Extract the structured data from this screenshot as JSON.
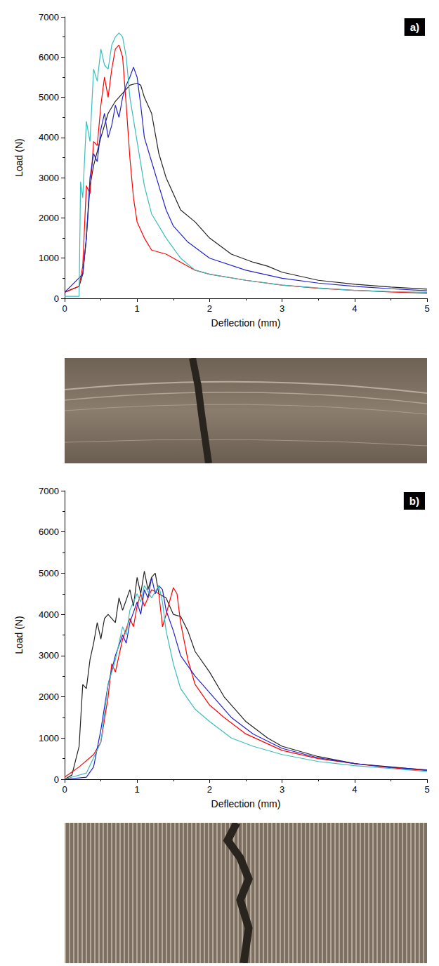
{
  "chart_data": [
    {
      "type": "line",
      "annotation": "a)",
      "x_label": "Deflection (mm)",
      "y_label": "Load (N)",
      "xlim": [
        0,
        5
      ],
      "xticks": [
        0,
        1,
        2,
        3,
        4,
        5
      ],
      "ylim": [
        0,
        7000
      ],
      "yticks": [
        0,
        1000,
        2000,
        3000,
        4000,
        5000,
        6000,
        7000
      ],
      "grid": false,
      "series": [
        {
          "color": "#222222",
          "x": [
            0,
            0.2,
            0.25,
            0.3,
            0.35,
            0.4,
            0.5,
            0.6,
            0.7,
            0.8,
            0.9,
            1.0,
            1.05,
            1.1,
            1.2,
            1.3,
            1.4,
            1.5,
            1.6,
            1.8,
            2.0,
            2.3,
            2.6,
            2.8,
            3.0,
            3.5,
            4.0,
            4.5,
            5.0
          ],
          "values": [
            150,
            300,
            600,
            1500,
            2800,
            3300,
            4000,
            4600,
            4900,
            5100,
            5300,
            5350,
            5300,
            5000,
            4600,
            3600,
            3000,
            2600,
            2200,
            1900,
            1500,
            1100,
            900,
            800,
            650,
            450,
            350,
            280,
            230
          ]
        },
        {
          "color": "#ff0000",
          "x": [
            0,
            0.2,
            0.25,
            0.3,
            0.35,
            0.4,
            0.45,
            0.5,
            0.55,
            0.6,
            0.65,
            0.7,
            0.75,
            0.8,
            0.85,
            0.9,
            0.95,
            1.0,
            1.1,
            1.2,
            1.4,
            1.6,
            1.8,
            2.0,
            2.5,
            3.0,
            3.5,
            4.0,
            4.5,
            5.0
          ],
          "values": [
            150,
            300,
            800,
            2800,
            2600,
            3900,
            3800,
            4800,
            5500,
            5000,
            5700,
            6200,
            6300,
            6000,
            4800,
            3500,
            2500,
            1900,
            1500,
            1200,
            1100,
            900,
            700,
            600,
            450,
            330,
            250,
            200,
            160,
            130
          ]
        },
        {
          "color": "#2222cc",
          "x": [
            0,
            0.25,
            0.3,
            0.35,
            0.4,
            0.45,
            0.5,
            0.55,
            0.6,
            0.65,
            0.7,
            0.75,
            0.8,
            0.85,
            0.9,
            0.95,
            1.0,
            1.05,
            1.1,
            1.2,
            1.3,
            1.4,
            1.5,
            1.7,
            2.0,
            2.5,
            3.0,
            3.5,
            4.0,
            4.5,
            5.0
          ],
          "values": [
            150,
            600,
            1500,
            3000,
            3600,
            3400,
            4200,
            4600,
            4000,
            4300,
            4800,
            4500,
            5000,
            5300,
            5500,
            5750,
            5500,
            4800,
            4000,
            3400,
            2800,
            2200,
            1800,
            1400,
            1000,
            700,
            500,
            380,
            300,
            240,
            190
          ]
        },
        {
          "color": "#3cbcbc",
          "x": [
            0,
            0.2,
            0.22,
            0.25,
            0.3,
            0.35,
            0.4,
            0.45,
            0.5,
            0.55,
            0.6,
            0.65,
            0.7,
            0.75,
            0.8,
            0.85,
            0.9,
            1.0,
            1.1,
            1.2,
            1.4,
            1.6,
            1.8,
            2.0,
            2.5,
            3.0,
            3.5,
            4.0,
            4.5,
            5.0
          ],
          "values": [
            50,
            50,
            2900,
            2500,
            4400,
            3900,
            5700,
            5400,
            6200,
            5800,
            5700,
            6300,
            6500,
            6600,
            6500,
            6000,
            5000,
            3900,
            2800,
            2100,
            1500,
            1000,
            700,
            600,
            450,
            330,
            260,
            200,
            170,
            150
          ]
        }
      ]
    },
    {
      "type": "line",
      "annotation": "b)",
      "x_label": "Deflection (mm)",
      "y_label": "Load (N)",
      "xlim": [
        0,
        5
      ],
      "xticks": [
        0,
        1,
        2,
        3,
        4,
        5
      ],
      "ylim": [
        0,
        7000
      ],
      "yticks": [
        0,
        1000,
        2000,
        3000,
        4000,
        5000,
        6000,
        7000
      ],
      "grid": false,
      "series": [
        {
          "color": "#222222",
          "x": [
            0,
            0.1,
            0.2,
            0.25,
            0.3,
            0.35,
            0.4,
            0.45,
            0.5,
            0.55,
            0.6,
            0.7,
            0.75,
            0.8,
            0.9,
            0.95,
            1.0,
            1.05,
            1.1,
            1.15,
            1.2,
            1.25,
            1.3,
            1.4,
            1.5,
            1.6,
            1.7,
            1.8,
            2.0,
            2.2,
            2.5,
            2.8,
            3.0,
            3.5,
            4.0,
            4.5,
            5.0
          ],
          "values": [
            0,
            100,
            800,
            2300,
            2200,
            2900,
            3300,
            3800,
            3400,
            3900,
            4000,
            3800,
            4400,
            4100,
            4600,
            4200,
            4900,
            4500,
            5050,
            4600,
            4900,
            5000,
            4500,
            4400,
            4000,
            3950,
            3600,
            3100,
            2600,
            2000,
            1400,
            1000,
            800,
            550,
            380,
            300,
            220
          ]
        },
        {
          "color": "#ff0000",
          "x": [
            0,
            0.2,
            0.4,
            0.5,
            0.6,
            0.65,
            0.7,
            0.8,
            0.9,
            0.95,
            1.0,
            1.05,
            1.1,
            1.2,
            1.3,
            1.35,
            1.4,
            1.5,
            1.55,
            1.6,
            1.7,
            1.8,
            2.0,
            2.2,
            2.5,
            3.0,
            3.5,
            4.0,
            4.5,
            5.0
          ],
          "values": [
            50,
            300,
            600,
            900,
            2000,
            2800,
            2600,
            3400,
            3900,
            3700,
            4200,
            4500,
            4200,
            4600,
            4500,
            3700,
            4000,
            4650,
            4500,
            3800,
            2900,
            2300,
            1800,
            1500,
            1100,
            700,
            500,
            380,
            280,
            210
          ]
        },
        {
          "color": "#2222cc",
          "x": [
            0,
            0.3,
            0.4,
            0.5,
            0.6,
            0.7,
            0.8,
            0.85,
            0.9,
            1.0,
            1.05,
            1.1,
            1.15,
            1.2,
            1.25,
            1.3,
            1.35,
            1.4,
            1.5,
            1.6,
            1.8,
            2.0,
            2.3,
            2.6,
            3.0,
            3.5,
            4.0,
            4.5,
            5.0
          ],
          "values": [
            0,
            50,
            300,
            1200,
            2300,
            3000,
            3500,
            3300,
            3800,
            4300,
            4000,
            4600,
            4400,
            4900,
            4500,
            4700,
            4600,
            4100,
            3600,
            3000,
            2500,
            2100,
            1500,
            1100,
            750,
            520,
            380,
            290,
            230
          ]
        },
        {
          "color": "#3cbcbc",
          "x": [
            0,
            0.3,
            0.5,
            0.6,
            0.7,
            0.8,
            0.85,
            0.9,
            1.0,
            1.05,
            1.1,
            1.2,
            1.3,
            1.35,
            1.4,
            1.5,
            1.6,
            1.8,
            2.0,
            2.3,
            2.6,
            3.0,
            3.5,
            4.0,
            4.5,
            5.0
          ],
          "values": [
            0,
            150,
            900,
            2300,
            2900,
            3700,
            3500,
            4100,
            4500,
            4300,
            4700,
            4400,
            4700,
            4300,
            3600,
            2800,
            2200,
            1700,
            1400,
            1000,
            800,
            600,
            430,
            330,
            260,
            190
          ]
        }
      ]
    }
  ]
}
